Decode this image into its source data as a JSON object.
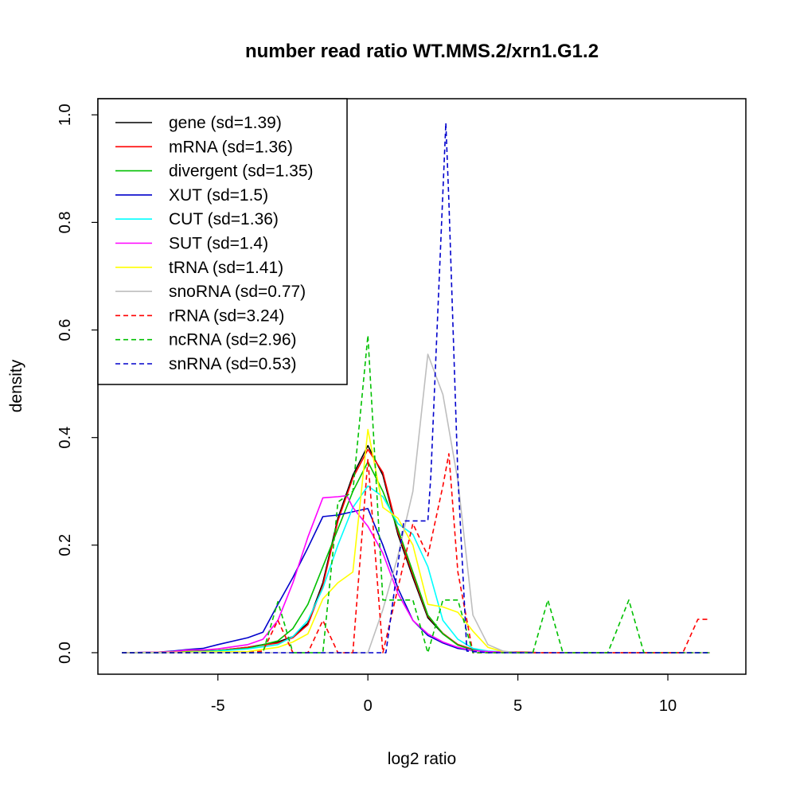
{
  "chart_data": {
    "type": "line",
    "title": "number read ratio WT.MMS.2/xrn1.G1.2",
    "xlabel": "log2 ratio",
    "ylabel": "density",
    "xlim": [
      -9.0,
      12.6
    ],
    "ylim": [
      -0.04,
      1.03
    ],
    "x_ticks": [
      -5,
      0,
      5,
      10
    ],
    "x_tick_labels": [
      "-5",
      "0",
      "5",
      "10"
    ],
    "y_ticks": [
      0.0,
      0.2,
      0.4,
      0.6,
      0.8,
      1.0
    ],
    "y_tick_labels": [
      "0.0",
      "0.2",
      "0.4",
      "0.6",
      "0.8",
      "1.0"
    ],
    "legend_position": "top-left",
    "grid": false,
    "series": [
      {
        "name": "gene (sd=1.39)",
        "color": "#000000",
        "dash": "solid",
        "points": [
          [
            -8.2,
            0
          ],
          [
            -7.0,
            0
          ],
          [
            -6.0,
            0.002
          ],
          [
            -5.0,
            0.004
          ],
          [
            -4.0,
            0.01
          ],
          [
            -3.0,
            0.02
          ],
          [
            -2.5,
            0.03
          ],
          [
            -2.0,
            0.055
          ],
          [
            -1.5,
            0.13
          ],
          [
            -1.0,
            0.25
          ],
          [
            -0.5,
            0.33
          ],
          [
            0,
            0.385
          ],
          [
            0.5,
            0.33
          ],
          [
            1.0,
            0.22
          ],
          [
            1.5,
            0.14
          ],
          [
            2.0,
            0.065
          ],
          [
            2.5,
            0.035
          ],
          [
            3.0,
            0.015
          ],
          [
            3.5,
            0.006
          ],
          [
            4.0,
            0.002
          ],
          [
            5.0,
            0.001
          ],
          [
            6.0,
            0
          ],
          [
            8.0,
            0
          ],
          [
            10.0,
            0
          ],
          [
            11.4,
            0
          ]
        ]
      },
      {
        "name": "mRNA (sd=1.36)",
        "color": "#ff0000",
        "dash": "solid",
        "points": [
          [
            -8.2,
            0
          ],
          [
            -7.0,
            0
          ],
          [
            -6.0,
            0.002
          ],
          [
            -5.0,
            0.004
          ],
          [
            -4.0,
            0.01
          ],
          [
            -3.0,
            0.018
          ],
          [
            -2.5,
            0.028
          ],
          [
            -2.0,
            0.052
          ],
          [
            -1.5,
            0.125
          ],
          [
            -1.0,
            0.245
          ],
          [
            -0.5,
            0.325
          ],
          [
            0,
            0.378
          ],
          [
            0.5,
            0.335
          ],
          [
            1.0,
            0.225
          ],
          [
            1.5,
            0.145
          ],
          [
            2.0,
            0.068
          ],
          [
            2.5,
            0.036
          ],
          [
            3.0,
            0.015
          ],
          [
            3.5,
            0.006
          ],
          [
            4.0,
            0.002
          ],
          [
            5.0,
            0.001
          ],
          [
            6.0,
            0
          ],
          [
            8.0,
            0
          ],
          [
            10.0,
            0
          ],
          [
            11.4,
            0
          ]
        ]
      },
      {
        "name": "divergent (sd=1.35)",
        "color": "#00c000",
        "dash": "solid",
        "points": [
          [
            -8.2,
            0
          ],
          [
            -7.0,
            0
          ],
          [
            -6.0,
            0.002
          ],
          [
            -5.0,
            0.004
          ],
          [
            -4.0,
            0.008
          ],
          [
            -3.0,
            0.022
          ],
          [
            -2.5,
            0.045
          ],
          [
            -2.0,
            0.09
          ],
          [
            -1.5,
            0.16
          ],
          [
            -1.0,
            0.23
          ],
          [
            -0.5,
            0.3
          ],
          [
            0,
            0.355
          ],
          [
            0.5,
            0.3
          ],
          [
            1.0,
            0.23
          ],
          [
            1.5,
            0.15
          ],
          [
            2.0,
            0.07
          ],
          [
            2.5,
            0.035
          ],
          [
            3.0,
            0.014
          ],
          [
            3.5,
            0.005
          ],
          [
            4.0,
            0.002
          ],
          [
            5.0,
            0
          ],
          [
            8.0,
            0
          ],
          [
            10.0,
            0
          ],
          [
            11.4,
            0
          ]
        ]
      },
      {
        "name": "XUT (sd=1.5)",
        "color": "#0000cc",
        "dash": "solid",
        "points": [
          [
            -8.2,
            0
          ],
          [
            -7.0,
            0.001
          ],
          [
            -6.5,
            0.003
          ],
          [
            -6.0,
            0.006
          ],
          [
            -5.5,
            0.008
          ],
          [
            -5.0,
            0.015
          ],
          [
            -4.0,
            0.028
          ],
          [
            -3.5,
            0.038
          ],
          [
            -3.0,
            0.09
          ],
          [
            -2.5,
            0.14
          ],
          [
            -2.0,
            0.195
          ],
          [
            -1.5,
            0.253
          ],
          [
            -1.0,
            0.256
          ],
          [
            -0.5,
            0.262
          ],
          [
            0,
            0.268
          ],
          [
            0.5,
            0.2
          ],
          [
            1.0,
            0.12
          ],
          [
            1.5,
            0.06
          ],
          [
            2.0,
            0.032
          ],
          [
            2.5,
            0.018
          ],
          [
            3.0,
            0.008
          ],
          [
            3.5,
            0.004
          ],
          [
            4.0,
            0.002
          ],
          [
            5.0,
            0
          ],
          [
            8.0,
            0
          ],
          [
            10.0,
            0
          ],
          [
            11.4,
            0
          ]
        ]
      },
      {
        "name": "CUT (sd=1.36)",
        "color": "#00ffff",
        "dash": "solid",
        "points": [
          [
            -8.2,
            0
          ],
          [
            -7.0,
            0
          ],
          [
            -6.0,
            0.001
          ],
          [
            -5.0,
            0.003
          ],
          [
            -4.0,
            0.007
          ],
          [
            -3.0,
            0.015
          ],
          [
            -2.5,
            0.03
          ],
          [
            -2.0,
            0.06
          ],
          [
            -1.5,
            0.12
          ],
          [
            -1.0,
            0.2
          ],
          [
            -0.5,
            0.27
          ],
          [
            0,
            0.31
          ],
          [
            0.5,
            0.29
          ],
          [
            1.0,
            0.24
          ],
          [
            1.5,
            0.22
          ],
          [
            2.0,
            0.16
          ],
          [
            2.5,
            0.06
          ],
          [
            3.0,
            0.025
          ],
          [
            3.5,
            0.008
          ],
          [
            4.0,
            0.003
          ],
          [
            5.0,
            0
          ],
          [
            8.0,
            0
          ],
          [
            10.0,
            0
          ],
          [
            11.4,
            0
          ]
        ]
      },
      {
        "name": "SUT (sd=1.4)",
        "color": "#ff00ff",
        "dash": "solid",
        "points": [
          [
            -8.2,
            0
          ],
          [
            -7.0,
            0.001
          ],
          [
            -6.5,
            0.002
          ],
          [
            -6.0,
            0.005
          ],
          [
            -5.5,
            0.005
          ],
          [
            -5.0,
            0.007
          ],
          [
            -4.0,
            0.015
          ],
          [
            -3.5,
            0.025
          ],
          [
            -3.0,
            0.06
          ],
          [
            -2.5,
            0.13
          ],
          [
            -2.0,
            0.215
          ],
          [
            -1.5,
            0.288
          ],
          [
            -1.0,
            0.29
          ],
          [
            -0.7,
            0.292
          ],
          [
            -0.5,
            0.27
          ],
          [
            0,
            0.235
          ],
          [
            0.5,
            0.185
          ],
          [
            1.0,
            0.11
          ],
          [
            1.5,
            0.06
          ],
          [
            2.0,
            0.035
          ],
          [
            2.5,
            0.02
          ],
          [
            3.0,
            0.01
          ],
          [
            3.5,
            0.004
          ],
          [
            4.0,
            0.002
          ],
          [
            5.0,
            0
          ],
          [
            8.0,
            0
          ],
          [
            10.0,
            0
          ],
          [
            11.4,
            0
          ]
        ]
      },
      {
        "name": "tRNA (sd=1.41)",
        "color": "#ffff00",
        "dash": "solid",
        "points": [
          [
            -8.2,
            0
          ],
          [
            -4.0,
            0.002
          ],
          [
            -3.0,
            0.01
          ],
          [
            -2.5,
            0.02
          ],
          [
            -2.0,
            0.035
          ],
          [
            -1.5,
            0.1
          ],
          [
            -1.0,
            0.13
          ],
          [
            -0.5,
            0.15
          ],
          [
            0,
            0.415
          ],
          [
            0.5,
            0.27
          ],
          [
            1.0,
            0.25
          ],
          [
            1.5,
            0.2
          ],
          [
            2.0,
            0.09
          ],
          [
            2.5,
            0.085
          ],
          [
            3.0,
            0.075
          ],
          [
            3.5,
            0.04
          ],
          [
            4.0,
            0.01
          ],
          [
            4.5,
            0.002
          ],
          [
            5.0,
            0
          ],
          [
            8.0,
            0
          ],
          [
            10.0,
            0
          ],
          [
            11.4,
            0
          ]
        ]
      },
      {
        "name": "snoRNA (sd=0.77)",
        "color": "#bebebe",
        "dash": "solid",
        "points": [
          [
            -8.2,
            0
          ],
          [
            -4.0,
            0
          ],
          [
            -1.0,
            0
          ],
          [
            0,
            0
          ],
          [
            0.5,
            0.08
          ],
          [
            1.0,
            0.18
          ],
          [
            1.5,
            0.3
          ],
          [
            2.0,
            0.555
          ],
          [
            2.5,
            0.48
          ],
          [
            3.0,
            0.32
          ],
          [
            3.5,
            0.07
          ],
          [
            4.0,
            0.015
          ],
          [
            4.5,
            0.003
          ],
          [
            5.0,
            0
          ],
          [
            8.0,
            0
          ],
          [
            10.0,
            0
          ],
          [
            11.4,
            0
          ]
        ]
      },
      {
        "name": "rRNA (sd=3.24)",
        "color": "#ff0000",
        "dash": "dashed",
        "points": [
          [
            -8.2,
            0
          ],
          [
            -4.0,
            0
          ],
          [
            -3.5,
            0.003
          ],
          [
            -3.0,
            0.06
          ],
          [
            -2.5,
            0
          ],
          [
            -2.0,
            0
          ],
          [
            -1.5,
            0.06
          ],
          [
            -1.0,
            0
          ],
          [
            -0.5,
            0
          ],
          [
            0,
            0.36
          ],
          [
            0.5,
            0
          ],
          [
            1.0,
            0.12
          ],
          [
            1.5,
            0.24
          ],
          [
            2.0,
            0.18
          ],
          [
            2.5,
            0.31
          ],
          [
            2.7,
            0.37
          ],
          [
            3.0,
            0.15
          ],
          [
            3.5,
            0
          ],
          [
            4.0,
            0
          ],
          [
            6.0,
            0
          ],
          [
            8.0,
            0
          ],
          [
            10.0,
            0
          ],
          [
            10.5,
            0
          ],
          [
            11.0,
            0.062
          ],
          [
            11.4,
            0.062
          ]
        ]
      },
      {
        "name": "ncRNA (sd=2.96)",
        "color": "#00c000",
        "dash": "dashed",
        "points": [
          [
            -8.2,
            0
          ],
          [
            -4.0,
            0
          ],
          [
            -3.5,
            0
          ],
          [
            -3.0,
            0.095
          ],
          [
            -2.5,
            0
          ],
          [
            -2.0,
            0
          ],
          [
            -1.5,
            0
          ],
          [
            -1.0,
            0.28
          ],
          [
            -0.5,
            0.3
          ],
          [
            0,
            0.59
          ],
          [
            0.5,
            0.098
          ],
          [
            1.0,
            0.098
          ],
          [
            1.5,
            0.098
          ],
          [
            2.0,
            0
          ],
          [
            2.5,
            0.098
          ],
          [
            3.0,
            0.098
          ],
          [
            3.5,
            0
          ],
          [
            4.0,
            0
          ],
          [
            5.0,
            0
          ],
          [
            5.5,
            0
          ],
          [
            6.0,
            0.098
          ],
          [
            6.5,
            0
          ],
          [
            8.0,
            0
          ],
          [
            8.7,
            0.098
          ],
          [
            9.2,
            0
          ],
          [
            10.0,
            0
          ],
          [
            11.4,
            0
          ]
        ]
      },
      {
        "name": "snRNA (sd=0.53)",
        "color": "#0000cc",
        "dash": "dashed",
        "points": [
          [
            -8.2,
            0
          ],
          [
            -4.0,
            0
          ],
          [
            -1.0,
            0
          ],
          [
            0,
            0
          ],
          [
            0.6,
            0
          ],
          [
            1.2,
            0.245
          ],
          [
            2.0,
            0.245
          ],
          [
            2.1,
            0.33
          ],
          [
            2.6,
            0.985
          ],
          [
            2.7,
            0.84
          ],
          [
            3.0,
            0.33
          ],
          [
            3.3,
            0.003
          ],
          [
            4.0,
            0
          ],
          [
            6.0,
            0
          ],
          [
            8.0,
            0
          ],
          [
            10.0,
            0
          ],
          [
            11.4,
            0
          ]
        ]
      }
    ]
  }
}
